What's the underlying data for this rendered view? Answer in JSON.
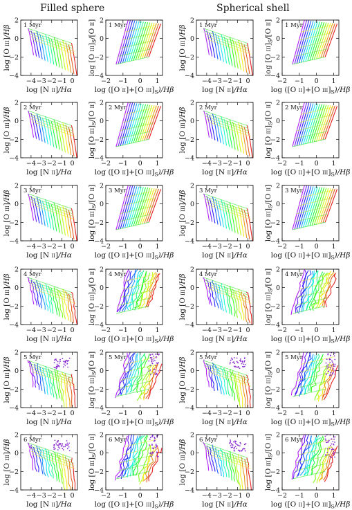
{
  "figure": {
    "column_titles": [
      "Filled sphere",
      "Spherical shell"
    ]
  },
  "chart_data": [
    {
      "type": "line",
      "description_key": "bpt",
      "column": "Filled sphere",
      "age_label": "1 Myr",
      "xlabel": "log [N II]/Hα",
      "ylabel": "log [O III]/Hβ",
      "xlim": [
        -5,
        0.5
      ],
      "ylim": [
        -4,
        2
      ],
      "xticks": [
        -4,
        -3,
        -2,
        -1,
        0
      ],
      "yticks": [
        -4,
        -2,
        0,
        2
      ],
      "grid": false,
      "legend": "none"
    },
    {
      "type": "line",
      "description_key": "o32",
      "column": "Filled sphere",
      "age_label": "1 Myr",
      "xlabel": "log ([O II]+[O III]S)/Hβ",
      "ylabel": "log [O III]S/[O II]",
      "xlim": [
        -2,
        1.3
      ],
      "ylim": [
        -4,
        2
      ],
      "xticks": [
        -2,
        -1,
        0,
        1
      ],
      "yticks": [
        -4,
        -2,
        0,
        2
      ],
      "grid": false,
      "legend": "none"
    },
    {
      "type": "line",
      "description_key": "bpt",
      "column": "Spherical shell",
      "age_label": "1 Myr",
      "xlabel": "log [N II]/Hα",
      "ylabel": "log [O III]/Hβ",
      "xlim": [
        -5,
        0.5
      ],
      "ylim": [
        -4,
        2
      ],
      "xticks": [
        -4,
        -3,
        -2,
        -1,
        0
      ],
      "yticks": [
        -4,
        -2,
        0,
        2
      ],
      "grid": false,
      "legend": "none"
    },
    {
      "type": "line",
      "description_key": "o32",
      "column": "Spherical shell",
      "age_label": "1 Myr",
      "xlabel": "log ([O II]+[O III]S)/Hβ",
      "ylabel": "log [O III]S/[O II]",
      "xlim": [
        -2,
        1.3
      ],
      "ylim": [
        -4,
        2
      ],
      "xticks": [
        -2,
        -1,
        0,
        1
      ],
      "yticks": [
        -4,
        -2,
        0,
        2
      ],
      "grid": false,
      "legend": "none"
    },
    {
      "type": "line",
      "description_key": "bpt",
      "column": "Filled sphere",
      "age_label": "2 Myr",
      "xlabel": "log [N II]/Hα",
      "ylabel": "log [O III]/Hβ",
      "xlim": [
        -5,
        0.5
      ],
      "ylim": [
        -4,
        2
      ],
      "xticks": [
        -4,
        -3,
        -2,
        -1,
        0
      ],
      "yticks": [
        -4,
        -2,
        0,
        2
      ],
      "grid": false,
      "legend": "none"
    },
    {
      "type": "line",
      "description_key": "o32",
      "column": "Filled sphere",
      "age_label": "2 Myr",
      "xlabel": "log ([O II]+[O III]S)/Hβ",
      "ylabel": "log [O III]S/[O II]",
      "xlim": [
        -2,
        1.3
      ],
      "ylim": [
        -4,
        2
      ],
      "xticks": [
        -2,
        -1,
        0,
        1
      ],
      "yticks": [
        -4,
        -2,
        0,
        2
      ],
      "grid": false,
      "legend": "none"
    },
    {
      "type": "line",
      "description_key": "bpt",
      "column": "Spherical shell",
      "age_label": "2 Myr",
      "xlabel": "log [N II]/Hα",
      "ylabel": "log [O III]/Hβ",
      "xlim": [
        -5,
        0.5
      ],
      "ylim": [
        -4,
        2
      ],
      "xticks": [
        -4,
        -3,
        -2,
        -1,
        0
      ],
      "yticks": [
        -4,
        -2,
        0,
        2
      ],
      "grid": false,
      "legend": "none"
    },
    {
      "type": "line",
      "description_key": "o32",
      "column": "Spherical shell",
      "age_label": "2 Myr",
      "xlabel": "log ([O II]+[O III]S)/Hβ",
      "ylabel": "log [O III]S/[O II]",
      "xlim": [
        -2,
        1.3
      ],
      "ylim": [
        -4,
        2
      ],
      "xticks": [
        -2,
        -1,
        0,
        1
      ],
      "yticks": [
        -4,
        -2,
        0,
        2
      ],
      "grid": false,
      "legend": "none"
    },
    {
      "type": "line",
      "description_key": "bpt",
      "column": "Filled sphere",
      "age_label": "3 Myr",
      "xlabel": "log [N II]/Hα",
      "ylabel": "log [O III]/Hβ",
      "xlim": [
        -5,
        0.5
      ],
      "ylim": [
        -4,
        2
      ],
      "xticks": [
        -4,
        -3,
        -2,
        -1,
        0
      ],
      "yticks": [
        -4,
        -2,
        0,
        2
      ],
      "grid": false,
      "legend": "none"
    },
    {
      "type": "line",
      "description_key": "o32",
      "column": "Filled sphere",
      "age_label": "3 Myr",
      "xlabel": "log ([O II]+[O III]S)/Hβ",
      "ylabel": "log [O III]S/[O II]",
      "xlim": [
        -2,
        1.3
      ],
      "ylim": [
        -4,
        2
      ],
      "xticks": [
        -2,
        -1,
        0,
        1
      ],
      "yticks": [
        -4,
        -2,
        0,
        2
      ],
      "grid": false,
      "legend": "none"
    },
    {
      "type": "line",
      "description_key": "bpt",
      "column": "Spherical shell",
      "age_label": "3 Myr",
      "xlabel": "log [N II]/Hα",
      "ylabel": "log [O III]/Hβ",
      "xlim": [
        -5,
        0.5
      ],
      "ylim": [
        -4,
        2
      ],
      "xticks": [
        -4,
        -3,
        -2,
        -1,
        0
      ],
      "yticks": [
        -4,
        -2,
        0,
        2
      ],
      "grid": false,
      "legend": "none"
    },
    {
      "type": "line",
      "description_key": "o32",
      "column": "Spherical shell",
      "age_label": "3 Myr",
      "xlabel": "log ([O II]+[O III]S)/Hβ",
      "ylabel": "log [O III]S/[O II]",
      "xlim": [
        -2,
        1.3
      ],
      "ylim": [
        -4,
        2
      ],
      "xticks": [
        -2,
        -1,
        0,
        1
      ],
      "yticks": [
        -4,
        -2,
        0,
        2
      ],
      "grid": false,
      "legend": "none"
    },
    {
      "type": "line",
      "description_key": "bpt",
      "column": "Filled sphere",
      "age_label": "4 Myr",
      "xlabel": "log [N II]/Hα",
      "ylabel": "log [O III]/Hβ",
      "xlim": [
        -5,
        0.5
      ],
      "ylim": [
        -4,
        2
      ],
      "xticks": [
        -4,
        -3,
        -2,
        -1,
        0
      ],
      "yticks": [
        -4,
        -2,
        0,
        2
      ],
      "grid": false,
      "legend": "none"
    },
    {
      "type": "line",
      "description_key": "o32",
      "column": "Filled sphere",
      "age_label": "4 Myr",
      "xlabel": "log ([O II]+[O III]S)/Hβ",
      "ylabel": "log [O III]S/[O II]",
      "xlim": [
        -2,
        1.3
      ],
      "ylim": [
        -4,
        2
      ],
      "xticks": [
        -2,
        -1,
        0,
        1
      ],
      "yticks": [
        -4,
        -2,
        0,
        2
      ],
      "grid": false,
      "legend": "none"
    },
    {
      "type": "line",
      "description_key": "bpt",
      "column": "Spherical shell",
      "age_label": "4 Myr",
      "xlabel": "log [N II]/Hα",
      "ylabel": "log [O III]/Hβ",
      "xlim": [
        -5,
        0.5
      ],
      "ylim": [
        -4,
        2
      ],
      "xticks": [
        -4,
        -3,
        -2,
        -1,
        0
      ],
      "yticks": [
        -4,
        -2,
        0,
        2
      ],
      "grid": false,
      "legend": "none"
    },
    {
      "type": "line",
      "description_key": "o32",
      "column": "Spherical shell",
      "age_label": "4 Myr",
      "xlabel": "log ([O II]+[O III]S)/Hβ",
      "ylabel": "log [O III]S/[O II]",
      "xlim": [
        -2,
        1.3
      ],
      "ylim": [
        -4,
        2
      ],
      "xticks": [
        -2,
        -1,
        0,
        1
      ],
      "yticks": [
        -4,
        -2,
        0,
        2
      ],
      "grid": false,
      "legend": "none"
    },
    {
      "type": "line",
      "description_key": "bpt",
      "column": "Filled sphere",
      "age_label": "5 Myr",
      "xlabel": "log [N II]/Hα",
      "ylabel": "log [O III]/Hβ",
      "xlim": [
        -5,
        0.5
      ],
      "ylim": [
        -4,
        2
      ],
      "xticks": [
        -4,
        -3,
        -2,
        -1,
        0
      ],
      "yticks": [
        -4,
        -2,
        0,
        2
      ],
      "grid": false,
      "legend": "none"
    },
    {
      "type": "line",
      "description_key": "o32",
      "column": "Filled sphere",
      "age_label": "5 Myr",
      "xlabel": "log ([O II]+[O III]S)/Hβ",
      "ylabel": "log [O III]S/[O II]",
      "xlim": [
        -2,
        1.3
      ],
      "ylim": [
        -4,
        2
      ],
      "xticks": [
        -2,
        -1,
        0,
        1
      ],
      "yticks": [
        -4,
        -2,
        0,
        2
      ],
      "grid": false,
      "legend": "none"
    },
    {
      "type": "line",
      "description_key": "bpt",
      "column": "Spherical shell",
      "age_label": "5 Myr",
      "xlabel": "log [N II]/Hα",
      "ylabel": "log [O III]/Hβ",
      "xlim": [
        -5,
        0.5
      ],
      "ylim": [
        -4,
        2
      ],
      "xticks": [
        -4,
        -3,
        -2,
        -1,
        0
      ],
      "yticks": [
        -4,
        -2,
        0,
        2
      ],
      "grid": false,
      "legend": "none"
    },
    {
      "type": "line",
      "description_key": "o32",
      "column": "Spherical shell",
      "age_label": "5 Myr",
      "xlabel": "log ([O II]+[O III]S)/Hβ",
      "ylabel": "log [O III]S/[O II]",
      "xlim": [
        -2,
        1.3
      ],
      "ylim": [
        -4,
        2
      ],
      "xticks": [
        -2,
        -1,
        0,
        1
      ],
      "yticks": [
        -4,
        -2,
        0,
        2
      ],
      "grid": false,
      "legend": "none"
    },
    {
      "type": "line",
      "description_key": "bpt",
      "column": "Filled sphere",
      "age_label": "6 Myr",
      "xlabel": "log [N II]/Hα",
      "ylabel": "log [O III]/Hβ",
      "xlim": [
        -5,
        0.5
      ],
      "ylim": [
        -4,
        2
      ],
      "xticks": [
        -4,
        -3,
        -2,
        -1,
        0
      ],
      "yticks": [
        -4,
        -2,
        0,
        2
      ],
      "grid": false,
      "legend": "none"
    },
    {
      "type": "line",
      "description_key": "o32",
      "column": "Filled sphere",
      "age_label": "6 Myr",
      "xlabel": "log ([O II]+[O III]S)/Hβ",
      "ylabel": "log [O III]S/[O II]",
      "xlim": [
        -2,
        1.3
      ],
      "ylim": [
        -4,
        2
      ],
      "xticks": [
        -2,
        -1,
        0,
        1
      ],
      "yticks": [
        -4,
        -2,
        0,
        2
      ],
      "grid": false,
      "legend": "none"
    },
    {
      "type": "line",
      "description_key": "bpt",
      "column": "Spherical shell",
      "age_label": "6 Myr",
      "xlabel": "log [N II]/Hα",
      "ylabel": "log [O III]/Hβ",
      "xlim": [
        -5,
        0.5
      ],
      "ylim": [
        -4,
        2
      ],
      "xticks": [
        -4,
        -3,
        -2,
        -1,
        0
      ],
      "yticks": [
        -4,
        -2,
        0,
        2
      ],
      "grid": false,
      "legend": "none"
    },
    {
      "type": "line",
      "description_key": "o32",
      "column": "Spherical shell",
      "age_label": "6 Myr",
      "xlabel": "log ([O II]+[O III]S)/Hβ",
      "ylabel": "log [O III]S/[O II]",
      "xlim": [
        -2,
        1.3
      ],
      "ylim": [
        -4,
        2
      ],
      "xticks": [
        -2,
        -1,
        0,
        1
      ],
      "yticks": [
        -4,
        -2,
        0,
        2
      ],
      "grid": false,
      "legend": "none"
    }
  ]
}
